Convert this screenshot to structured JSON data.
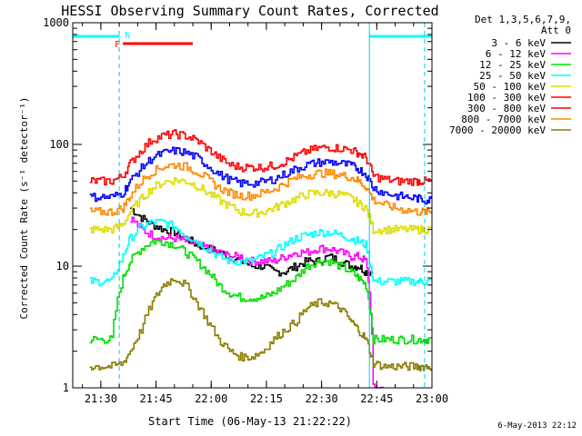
{
  "chart_data": {
    "type": "line",
    "title": "HESSI Observing Summary Count Rates, Corrected",
    "xlabel": "Start Time (06-May-13 21:22:22)",
    "ylabel": "Corrected Count Rate (s⁻¹ detector⁻¹)",
    "y_scale": "log",
    "ylim": [
      1,
      1000
    ],
    "xlim": [
      "21:22:22",
      "23:00:00"
    ],
    "x_ticks": [
      "21:30",
      "21:45",
      "22:00",
      "22:15",
      "22:30",
      "22:45",
      "23:00"
    ],
    "y_ticks": [
      "1",
      "10",
      "100",
      "1000"
    ],
    "legend_header": [
      "Det 1,3,5,6,7,9,",
      "Att 0"
    ],
    "legend_position": "right",
    "x_time_points": [
      "21:27",
      "21:30",
      "21:33",
      "21:36",
      "21:38",
      "21:41",
      "21:44",
      "21:47",
      "21:50",
      "21:53",
      "21:56",
      "21:59",
      "22:02",
      "22:05",
      "22:08",
      "22:11",
      "22:14",
      "22:17",
      "22:20",
      "22:23",
      "22:26",
      "22:29",
      "22:32",
      "22:35",
      "22:38",
      "22:40",
      "22:42",
      "22:44",
      "22:47",
      "22:50",
      "22:53",
      "22:56",
      "22:58"
    ],
    "series": [
      {
        "name": "3 - 6 keV",
        "color": "#000000",
        "values": [
          null,
          null,
          null,
          null,
          30,
          25,
          22,
          20,
          19,
          17,
          15,
          14,
          13,
          12,
          11,
          10,
          10,
          9,
          9,
          10,
          11,
          11,
          12,
          11,
          10,
          10,
          9,
          null,
          null,
          null,
          null,
          null,
          null
        ]
      },
      {
        "name": "6 - 12 keV",
        "color": "#ff00ff",
        "values": [
          null,
          null,
          null,
          null,
          25,
          20,
          18,
          17,
          17,
          16,
          15,
          14,
          13,
          12,
          12,
          11,
          11,
          11,
          12,
          13,
          13,
          14,
          14,
          13,
          12,
          12,
          11,
          1,
          null,
          null,
          null,
          null,
          null
        ]
      },
      {
        "name": "12 - 25 keV",
        "color": "#00dd00",
        "values": [
          2.5,
          2.5,
          2.5,
          8,
          11,
          14,
          16,
          16,
          15,
          13,
          11,
          9,
          7,
          6,
          5.5,
          5.5,
          5.5,
          6,
          7,
          8,
          10,
          11,
          11,
          10,
          9,
          8,
          7,
          2.5,
          2.5,
          2.5,
          2.5,
          2.5,
          2.5
        ]
      },
      {
        "name": "25 - 50 keV",
        "color": "#00ffff",
        "values": [
          7.5,
          7.5,
          7.5,
          12,
          17,
          21,
          23,
          23,
          21,
          18,
          16,
          14,
          12,
          11,
          11,
          11,
          12,
          13,
          15,
          17,
          18,
          19,
          19,
          18,
          17,
          16,
          15,
          7.5,
          7.5,
          7.5,
          7.5,
          7.5,
          7.5
        ]
      },
      {
        "name": "50 - 100 keV",
        "color": "#dddd00",
        "values": [
          20,
          20,
          20,
          22,
          28,
          36,
          44,
          49,
          51,
          50,
          46,
          40,
          35,
          31,
          28,
          27,
          28,
          30,
          33,
          36,
          39,
          40,
          40,
          39,
          36,
          33,
          30,
          20,
          20,
          20,
          20,
          20,
          20
        ]
      },
      {
        "name": "100 - 300 keV",
        "color": "#ff0000",
        "values": [
          50,
          50,
          50,
          55,
          70,
          90,
          110,
          118,
          122,
          118,
          108,
          92,
          78,
          68,
          65,
          65,
          65,
          67,
          72,
          80,
          88,
          93,
          95,
          93,
          90,
          85,
          78,
          55,
          52,
          50,
          50,
          50,
          50
        ]
      },
      {
        "name": "300 - 800 keV",
        "color": "#ff0000",
        "values": [
          null,
          null,
          null,
          null,
          null,
          null,
          null,
          null,
          null,
          null,
          null,
          null,
          null,
          null,
          null,
          null,
          null,
          null,
          null,
          null,
          null,
          null,
          null,
          null,
          null,
          null,
          null,
          null,
          null,
          null,
          null,
          null,
          null
        ]
      },
      {
        "name": "800 - 7000 keV",
        "color": "#ff8800",
        "values": [
          28,
          28,
          28,
          30,
          38,
          50,
          60,
          66,
          68,
          66,
          60,
          52,
          44,
          40,
          38,
          38,
          40,
          43,
          48,
          53,
          56,
          58,
          58,
          56,
          54,
          50,
          45,
          35,
          32,
          30,
          29,
          28,
          28
        ]
      },
      {
        "name": "7000 - 20000 keV",
        "color": "#8b7d00",
        "values": [
          1.5,
          1.5,
          1.5,
          1.6,
          2,
          3,
          5,
          7,
          8,
          7,
          5,
          3.5,
          2.5,
          2,
          1.8,
          1.8,
          2,
          2.5,
          3,
          3.5,
          4.5,
          5,
          5,
          4.5,
          3.5,
          3,
          2.5,
          1.6,
          1.5,
          1.5,
          1.5,
          1.5,
          1.5
        ]
      },
      {
        "name": "",
        "color": "#0000ff",
        "values": [
          37,
          37,
          37,
          40,
          50,
          64,
          78,
          85,
          89,
          86,
          78,
          67,
          57,
          51,
          48,
          48,
          49,
          52,
          57,
          63,
          68,
          71,
          72,
          70,
          67,
          63,
          57,
          44,
          40,
          38,
          37,
          36,
          35
        ]
      }
    ],
    "annotations": [
      {
        "label": "F",
        "color": "#ff0000",
        "x_start": "21:36",
        "x_end": "21:55"
      },
      {
        "label": "N",
        "color": "#00ffff",
        "x_start": "21:22:22",
        "x_end": "21:35"
      },
      {
        "label": "",
        "color": "#00ffff",
        "x_start": "22:43",
        "x_end": "23:00"
      }
    ],
    "vertical_markers": [
      "21:35",
      "22:43",
      "22:58"
    ]
  },
  "datestamp": "6-May-2013 22:12"
}
